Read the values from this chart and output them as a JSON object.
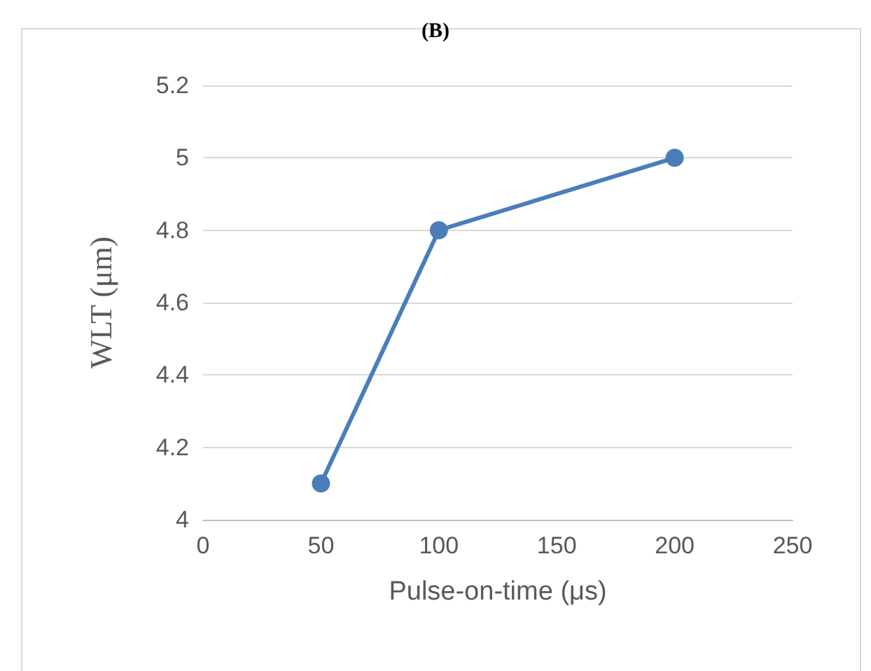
{
  "chart_data": {
    "type": "line",
    "title": "(B)",
    "xlabel": "Pulse-on-time (μs)",
    "ylabel": "WLT (μm)",
    "x": [
      50,
      100,
      200
    ],
    "series": [
      {
        "color": "#4a7ebb",
        "values": [
          4.1,
          4.8,
          5
        ]
      }
    ],
    "xlim": [
      0,
      250
    ],
    "xticks": [
      0,
      50,
      100,
      150,
      200,
      250
    ],
    "ylim": [
      4,
      5.2
    ],
    "yticks": [
      4,
      4.2,
      4.4,
      4.6,
      4.8,
      5,
      5.2
    ],
    "grid": "y",
    "marker": "circle",
    "line_style": "solid"
  }
}
